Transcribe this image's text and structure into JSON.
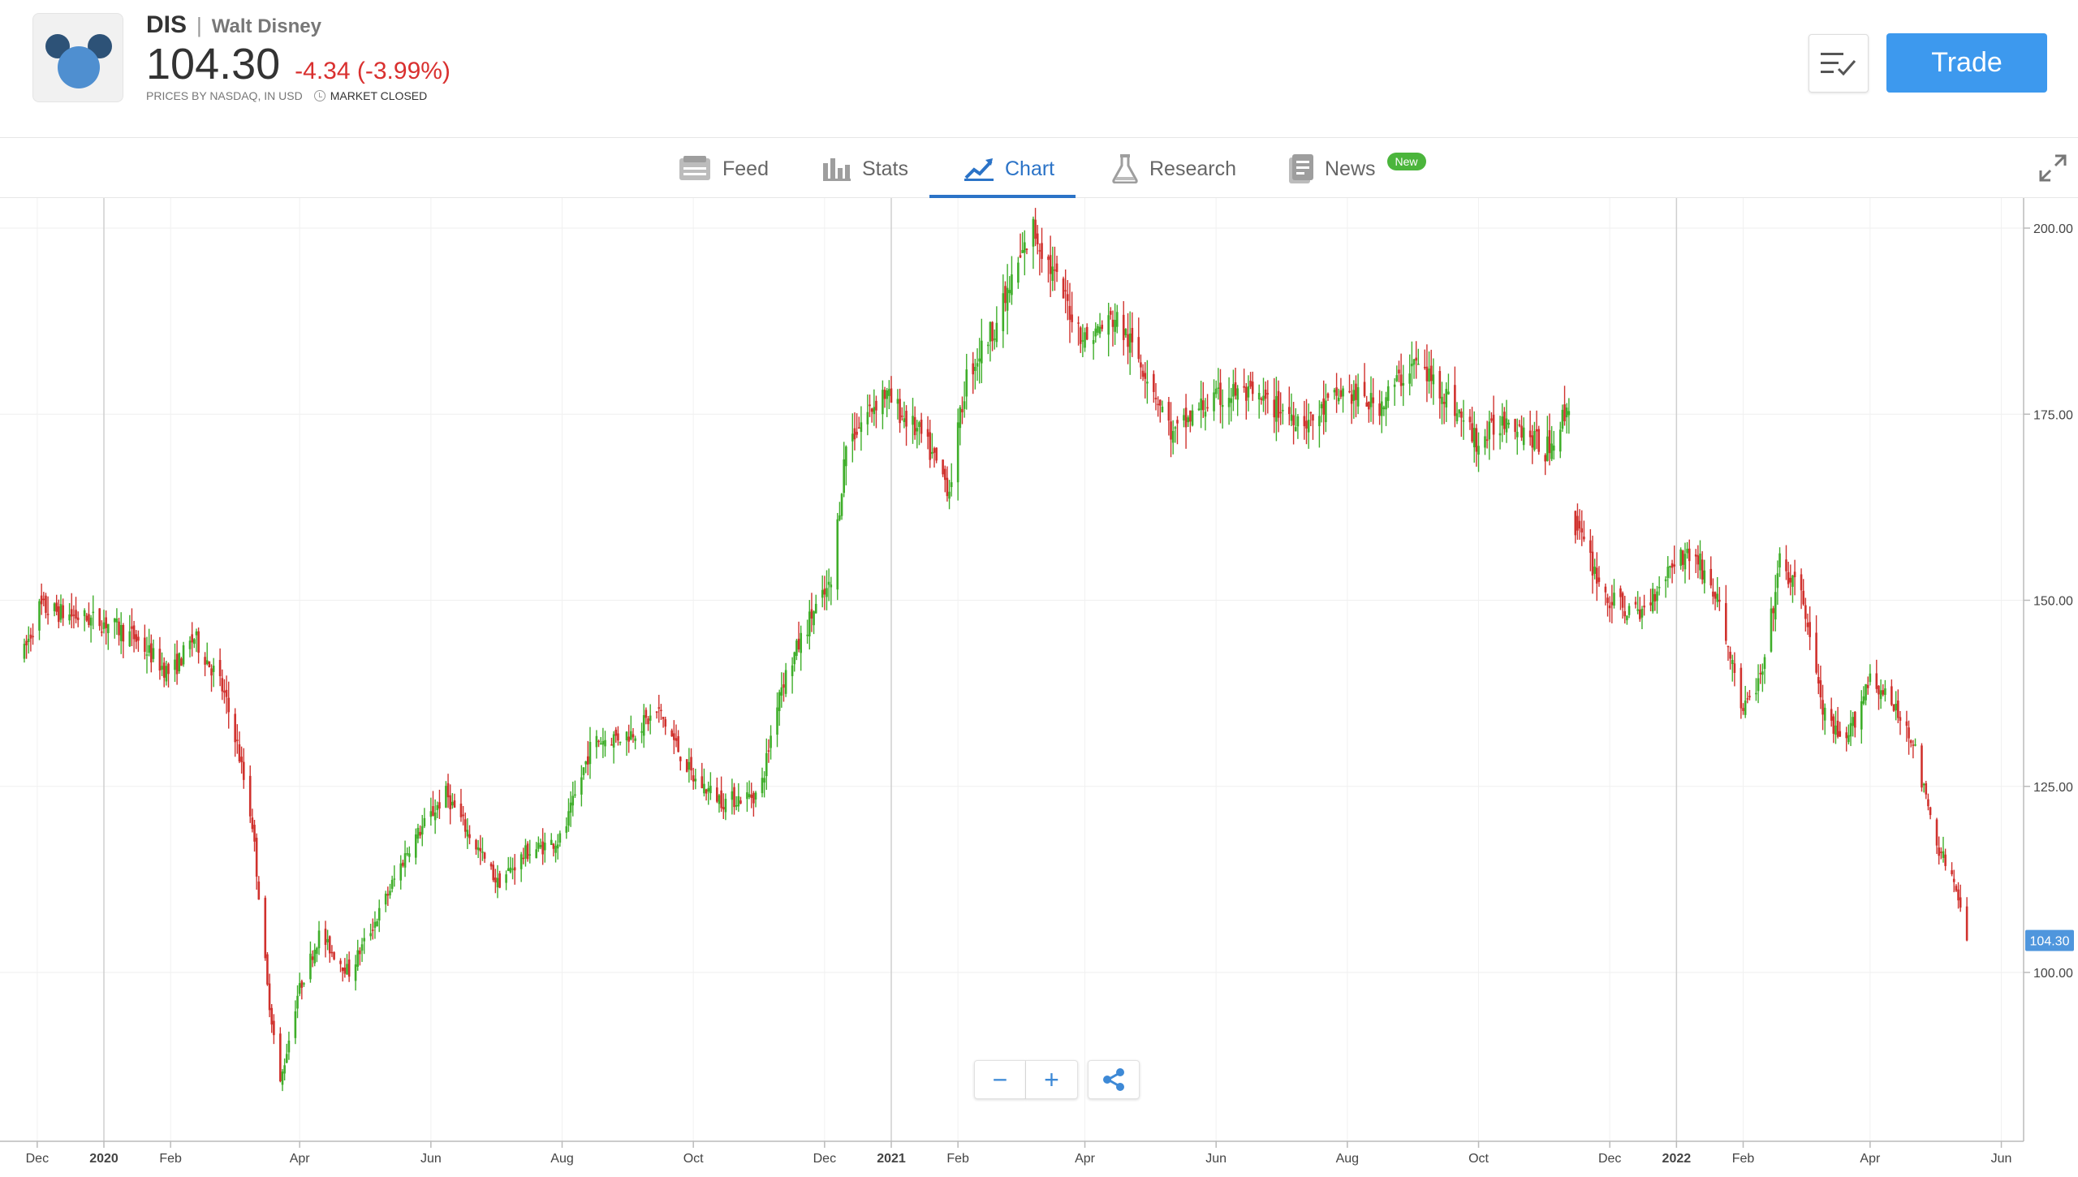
{
  "header": {
    "ticker": "DIS",
    "separator": "|",
    "company": "Walt Disney",
    "price": "104.30",
    "change": "-4.34 (-3.99%)",
    "source_note": "PRICES BY NASDAQ, IN USD",
    "market_status": "MARKET CLOSED",
    "trade_label": "Trade",
    "logo_icon": "mickey-head-icon",
    "watchlist_icon": "list-check-icon"
  },
  "tabs": [
    {
      "label": "Feed",
      "icon": "feed-icon"
    },
    {
      "label": "Stats",
      "icon": "bar-chart-icon"
    },
    {
      "label": "Chart",
      "icon": "line-chart-icon",
      "active": true
    },
    {
      "label": "Research",
      "icon": "flask-icon"
    },
    {
      "label": "News",
      "icon": "news-icon",
      "badge": "New"
    }
  ],
  "zoom": {
    "out_label": "−",
    "in_label": "+"
  },
  "chart_data": {
    "type": "line",
    "ylim": [
      78,
      204
    ],
    "y_ticks": [
      "200.00",
      "175.00",
      "150.00",
      "125.00",
      "100.00"
    ],
    "x_ticks": [
      "Dec",
      "2020",
      "Feb",
      "Apr",
      "Jun",
      "Aug",
      "Oct",
      "Dec",
      "2021",
      "Feb",
      "Apr",
      "Jun",
      "Aug",
      "Oct",
      "Dec",
      "2022",
      "Feb",
      "Apr",
      "Jun"
    ],
    "last_price_label": "104.30",
    "up_color": "#3fae2a",
    "down_color": "#d0312d",
    "series": [
      {
        "points": [
          [
            "2019-11-25",
            143
          ],
          [
            "2019-12-02",
            149
          ],
          [
            "2019-12-16",
            148
          ],
          [
            "2020-01-02",
            147
          ],
          [
            "2020-01-15",
            145
          ],
          [
            "2020-02-01",
            140
          ],
          [
            "2020-02-12",
            145
          ],
          [
            "2020-02-24",
            139
          ],
          [
            "2020-03-02",
            132
          ],
          [
            "2020-03-10",
            120
          ],
          [
            "2020-03-17",
            98
          ],
          [
            "2020-03-23",
            85
          ],
          [
            "2020-03-31",
            97
          ],
          [
            "2020-04-10",
            105
          ],
          [
            "2020-04-24",
            100
          ],
          [
            "2020-05-08",
            108
          ],
          [
            "2020-05-22",
            117
          ],
          [
            "2020-06-08",
            124
          ],
          [
            "2020-06-20",
            118
          ],
          [
            "2020-07-02",
            112
          ],
          [
            "2020-07-15",
            116
          ],
          [
            "2020-08-01",
            118
          ],
          [
            "2020-08-15",
            131
          ],
          [
            "2020-09-01",
            132
          ],
          [
            "2020-09-15",
            135
          ],
          [
            "2020-10-01",
            126
          ],
          [
            "2020-10-15",
            123
          ],
          [
            "2020-11-01",
            124
          ],
          [
            "2020-11-10",
            138
          ],
          [
            "2020-11-25",
            148
          ],
          [
            "2020-12-04",
            152
          ],
          [
            "2020-12-11",
            171
          ],
          [
            "2020-12-28",
            178
          ],
          [
            "2021-01-15",
            172
          ],
          [
            "2021-01-28",
            165
          ],
          [
            "2021-02-05",
            180
          ],
          [
            "2021-02-20",
            188
          ],
          [
            "2021-03-01",
            195
          ],
          [
            "2021-03-08",
            200
          ],
          [
            "2021-03-20",
            192
          ],
          [
            "2021-04-01",
            185
          ],
          [
            "2021-04-15",
            188
          ],
          [
            "2021-05-01",
            180
          ],
          [
            "2021-05-12",
            172
          ],
          [
            "2021-05-25",
            176
          ],
          [
            "2021-06-10",
            178
          ],
          [
            "2021-06-28",
            176
          ],
          [
            "2021-07-15",
            174
          ],
          [
            "2021-07-30",
            178
          ],
          [
            "2021-08-15",
            176
          ],
          [
            "2021-09-01",
            182
          ],
          [
            "2021-09-15",
            178
          ],
          [
            "2021-10-01",
            171
          ],
          [
            "2021-10-15",
            175
          ],
          [
            "2021-11-01",
            170
          ],
          [
            "2021-11-12",
            176
          ],
          [
            "2021-11-15",
            160
          ],
          [
            "2021-11-30",
            150
          ],
          [
            "2021-12-15",
            148
          ],
          [
            "2022-01-01",
            156
          ],
          [
            "2022-01-10",
            156
          ],
          [
            "2022-01-20",
            150
          ],
          [
            "2022-02-01",
            135
          ],
          [
            "2022-02-10",
            140
          ],
          [
            "2022-02-18",
            155
          ],
          [
            "2022-03-01",
            150
          ],
          [
            "2022-03-10",
            135
          ],
          [
            "2022-03-20",
            130
          ],
          [
            "2022-04-01",
            140
          ],
          [
            "2022-04-20",
            132
          ],
          [
            "2022-05-01",
            118
          ],
          [
            "2022-05-10",
            112
          ],
          [
            "2022-05-16",
            104.3
          ]
        ]
      }
    ]
  }
}
